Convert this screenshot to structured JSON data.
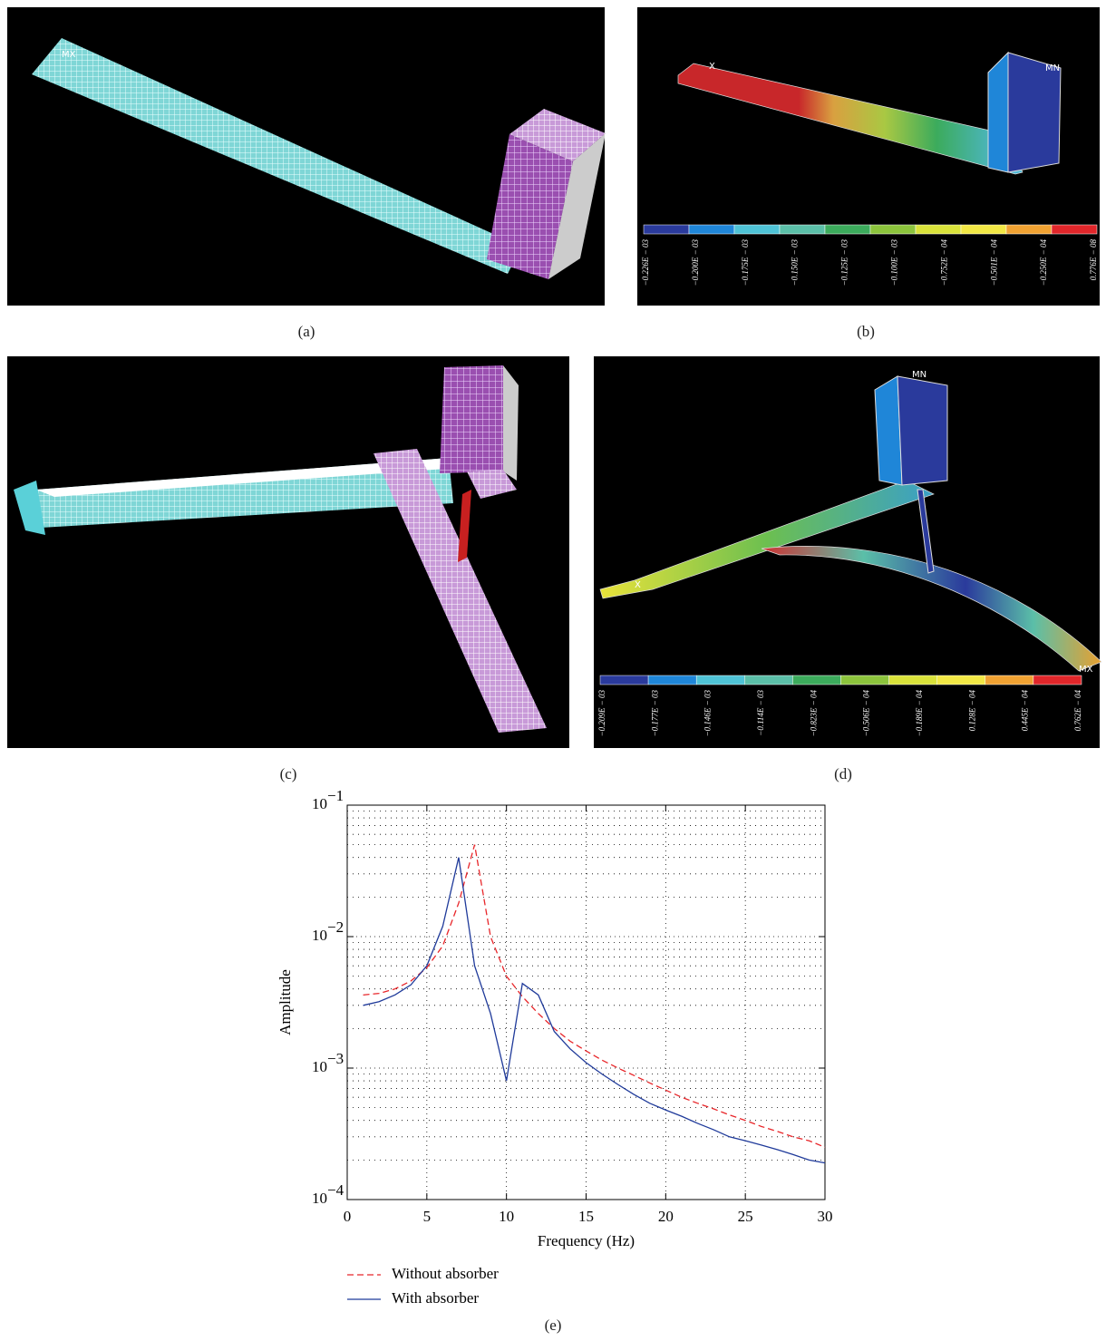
{
  "figure": {
    "panels": [
      {
        "label": "(a)",
        "annotations": [
          "MX"
        ]
      },
      {
        "label": "(b)",
        "annotations": [
          "X",
          "MN"
        ],
        "colorbar_colors": [
          "#2a3a9c",
          "#1f86d8",
          "#4fc3d6",
          "#5bbfa8",
          "#3cab5c",
          "#8cc43c",
          "#d9e23a",
          "#f2e845",
          "#f0a232",
          "#e0262a"
        ],
        "colorbar_labels": [
          "−0.226E − 03",
          "−0.200E − 03",
          "−0.175E − 03",
          "−0.150E − 03",
          "−0.125E − 03",
          "−0.100E − 03",
          "−0.752E − 04",
          "−0.501E − 04",
          "−0.250E − 04",
          "0.776E − 08"
        ]
      },
      {
        "label": "(c)",
        "annotations": []
      },
      {
        "label": "(d)",
        "annotations": [
          "MN",
          "X",
          "MX"
        ],
        "colorbar_colors": [
          "#2a3a9c",
          "#1f86d8",
          "#4fc3d6",
          "#5bbfa8",
          "#3cab5c",
          "#8cc43c",
          "#d9e23a",
          "#f2e845",
          "#f0a232",
          "#e0262a"
        ],
        "colorbar_labels": [
          "−0.209E − 03",
          "−0.177E − 03",
          "−0.146E − 03",
          "−0.114E − 03",
          "−0.823E − 04",
          "−0.506E − 04",
          "−0.189E − 04",
          "0.128E − 04",
          "0.445E − 04",
          "0.762E − 04"
        ]
      }
    ]
  },
  "chart_data": {
    "type": "line",
    "label": "(e)",
    "x_label": "Frequency (Hz)",
    "y_label": "Amplitude",
    "yscale": "log",
    "grid": true,
    "xlim": [
      0,
      30
    ],
    "ylim": [
      0.0001,
      0.1
    ],
    "xticks": [
      0,
      5,
      10,
      15,
      20,
      25,
      30
    ],
    "yticks": [
      {
        "value": 0.0001,
        "label": "10",
        "exponent": "−4"
      },
      {
        "value": 0.001,
        "label": "10",
        "exponent": "−3"
      },
      {
        "value": 0.01,
        "label": "10",
        "exponent": "−2"
      },
      {
        "value": 0.1,
        "label": "10",
        "exponent": "−1"
      }
    ],
    "x": [
      1,
      2,
      3,
      4,
      5,
      6,
      7,
      8,
      9,
      10,
      11,
      12,
      13,
      14,
      15,
      16,
      17,
      18,
      19,
      20,
      21,
      22,
      23,
      24,
      25,
      26,
      27,
      28,
      29,
      30
    ],
    "series": [
      {
        "name": "Without absorber",
        "color": "#e8262a",
        "line_style": "dashed",
        "values": [
          0.0036,
          0.0037,
          0.004,
          0.0046,
          0.0058,
          0.0085,
          0.018,
          0.05,
          0.01,
          0.005,
          0.0035,
          0.0026,
          0.002,
          0.0016,
          0.00135,
          0.00115,
          0.001,
          0.00088,
          0.00077,
          0.00068,
          0.0006,
          0.00054,
          0.00049,
          0.00044,
          0.0004,
          0.00036,
          0.00033,
          0.0003,
          0.00028,
          0.00025
        ]
      },
      {
        "name": "With absorber",
        "color": "#1f3a9a",
        "line_style": "solid",
        "values": [
          0.003,
          0.0032,
          0.0036,
          0.0043,
          0.006,
          0.012,
          0.04,
          0.006,
          0.0026,
          0.0008,
          0.0044,
          0.0036,
          0.0019,
          0.0014,
          0.0011,
          0.0009,
          0.00075,
          0.00063,
          0.00054,
          0.00048,
          0.00043,
          0.00038,
          0.00034,
          0.0003,
          0.00028,
          0.00026,
          0.00024,
          0.00022,
          0.0002,
          0.00019
        ]
      }
    ]
  }
}
